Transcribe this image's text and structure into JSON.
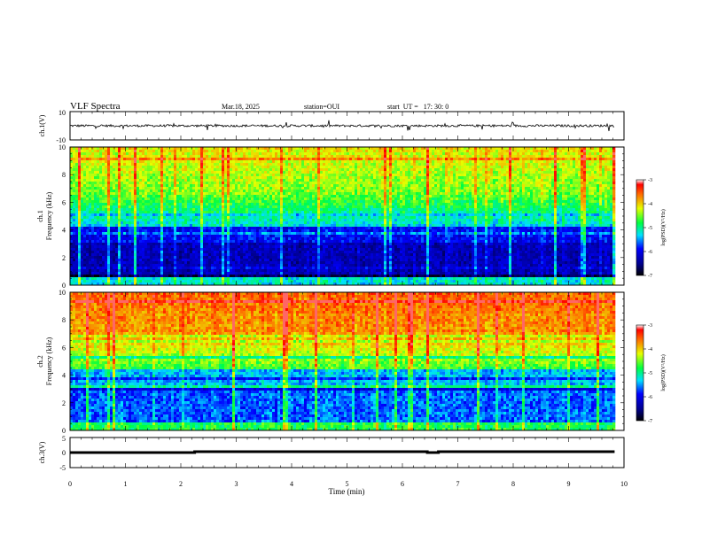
{
  "header": {
    "title": "VLF Spectra",
    "date": "Mar.18, 2025",
    "station": "station=OUI",
    "start": "start  UT =   17: 30: 0"
  },
  "chart_data": [
    {
      "type": "line",
      "panel": "ch1-waveform",
      "ylabel": "ch.1(V)",
      "ylim": [
        -10,
        10
      ],
      "yticks": [
        "10",
        "-10"
      ],
      "xlim": [
        0,
        9.83
      ],
      "note": "raw waveform trace, roughly +-1 V noise with occasional spikes"
    },
    {
      "type": "heatmap",
      "panel": "ch1-spectrogram",
      "ylabel": "ch.1",
      "ylabel2": "Frequency (kHz)",
      "ylim": [
        0,
        10
      ],
      "yticks": [
        "0",
        "2",
        "4",
        "6",
        "8",
        "10"
      ],
      "xlim": [
        0,
        9.83
      ],
      "colorbar": {
        "label": "log(PSD)(V²/Hz)",
        "range": [
          -7,
          -3
        ],
        "ticks": [
          "-3",
          "-4",
          "-5",
          "-6",
          "-7"
        ]
      }
    },
    {
      "type": "heatmap",
      "panel": "ch2-spectrogram",
      "ylabel": "ch.2",
      "ylabel2": "Frequency (kHz)",
      "ylim": [
        0,
        10
      ],
      "yticks": [
        "0",
        "2",
        "4",
        "6",
        "8",
        "10"
      ],
      "xlim": [
        0,
        9.83
      ],
      "colorbar": {
        "label": "log(PSD)(V²/Hz)",
        "range": [
          -7,
          -3
        ],
        "ticks": [
          "-3",
          "-4",
          "-5",
          "-6",
          "-7"
        ]
      }
    },
    {
      "type": "line",
      "panel": "ch3-level",
      "ylabel": "ch.3(V)",
      "ylim": [
        -5,
        5
      ],
      "yticks": [
        "5",
        "0",
        "-5"
      ],
      "xlim": [
        0,
        10
      ],
      "xlabel": "Time (min)",
      "xticks": [
        "0",
        "1",
        "2",
        "3",
        "4",
        "5",
        "6",
        "7",
        "8",
        "9",
        "10"
      ],
      "x": [
        0,
        2.25,
        2.25,
        6.45,
        6.45,
        6.65,
        6.65,
        9.83
      ],
      "y": [
        0,
        0,
        0.3,
        0.3,
        0,
        0,
        0.3,
        0.3
      ]
    }
  ]
}
